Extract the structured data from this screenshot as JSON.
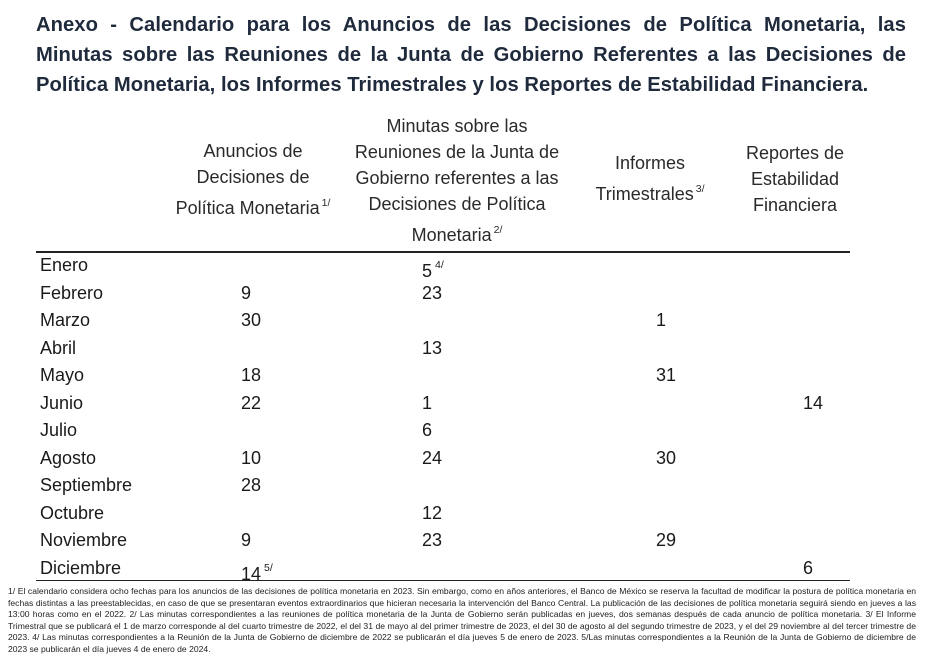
{
  "title": "Anexo - Calendario para los Anuncios de las Decisiones de Política Monetaria, las Minutas sobre las Reuniones de la Junta de Gobierno Referentes a las Decisiones de Política Monetaria, los Informes Trimestrales y los Reportes de Estabilidad Financiera.",
  "columns": [
    {
      "lines": [
        "Anuncios de",
        "Decisiones  de",
        "Política Monetaria"
      ],
      "note": "1/"
    },
    {
      "lines": [
        "Minutas sobre las",
        "Reuniones de la Junta de",
        "Gobierno referentes a las",
        "Decisiones de Política",
        "Monetaria"
      ],
      "note": "2/"
    },
    {
      "lines": [
        "Informes",
        "Trimestrales"
      ],
      "note": "3/"
    },
    {
      "lines": [
        "Reportes de",
        "Estabilidad",
        "Financiera"
      ]
    }
  ],
  "rows": [
    {
      "month": "Enero",
      "anuncios": "",
      "minutas": "5",
      "minutas_note": "4/",
      "informes": "",
      "reportes": ""
    },
    {
      "month": "Febrero",
      "anuncios": "9",
      "minutas": "23",
      "informes": "",
      "reportes": ""
    },
    {
      "month": "Marzo",
      "anuncios": "30",
      "minutas": "",
      "informes": "1",
      "reportes": ""
    },
    {
      "month": "Abril",
      "anuncios": "",
      "minutas": "13",
      "informes": "",
      "reportes": ""
    },
    {
      "month": "Mayo",
      "anuncios": "18",
      "minutas": "",
      "informes": "31",
      "reportes": ""
    },
    {
      "month": "Junio",
      "anuncios": "22",
      "minutas": "1",
      "informes": "",
      "reportes": "14"
    },
    {
      "month": "Julio",
      "anuncios": "",
      "minutas": "6",
      "informes": "",
      "reportes": ""
    },
    {
      "month": "Agosto",
      "anuncios": "10",
      "minutas": "24",
      "informes": "30",
      "reportes": ""
    },
    {
      "month": "Septiembre",
      "anuncios": "28",
      "minutas": "",
      "informes": "",
      "reportes": ""
    },
    {
      "month": "Octubre",
      "anuncios": "",
      "minutas": "12",
      "informes": "",
      "reportes": ""
    },
    {
      "month": "Noviembre",
      "anuncios": "9",
      "minutas": "23",
      "informes": "29",
      "reportes": ""
    },
    {
      "month": "Diciembre",
      "anuncios": "14",
      "anuncios_note": "5/",
      "minutas": "",
      "informes": "",
      "reportes": "6"
    }
  ],
  "footnote": "1/ El calendario considera ocho fechas para los anuncios de las decisiones de política monetaria en 2023. Sin embargo, como en años anteriores, el Banco de México se reserva la facultad de modificar la postura de política monetaria en fechas distintas a las preestablecidas, en caso de que se presentaran eventos extraordinarios que hicieran necesaria la intervención del Banco Central. La publicación de las decisiones de política monetaria seguirá siendo en jueves a las 13:00 horas como en el 2022. 2/ Las minutas correspondientes a las reuniones de política monetaria de la Junta de Gobierno serán publicadas en jueves, dos semanas después de cada anuncio de política monetaria. 3/ El Informe Trimestral que se publicará el 1 de marzo corresponde al del cuarto trimestre de 2022, el del 31 de mayo al del primer trimestre de 2023, el del 30 de agosto al del segundo trimestre de 2023, y el del 29 noviembre al del tercer trimestre de 2023. 4/ Las minutas correspondientes a la Reunión de la Junta de Gobierno de diciembre de 2022 se publicarán el día jueves 5 de enero de 2023. 5/Las minutas correspondientes a la Reunión de la Junta de Gobierno de diciembre de 2023 se publicarán el día jueves 4 de enero de 2024."
}
